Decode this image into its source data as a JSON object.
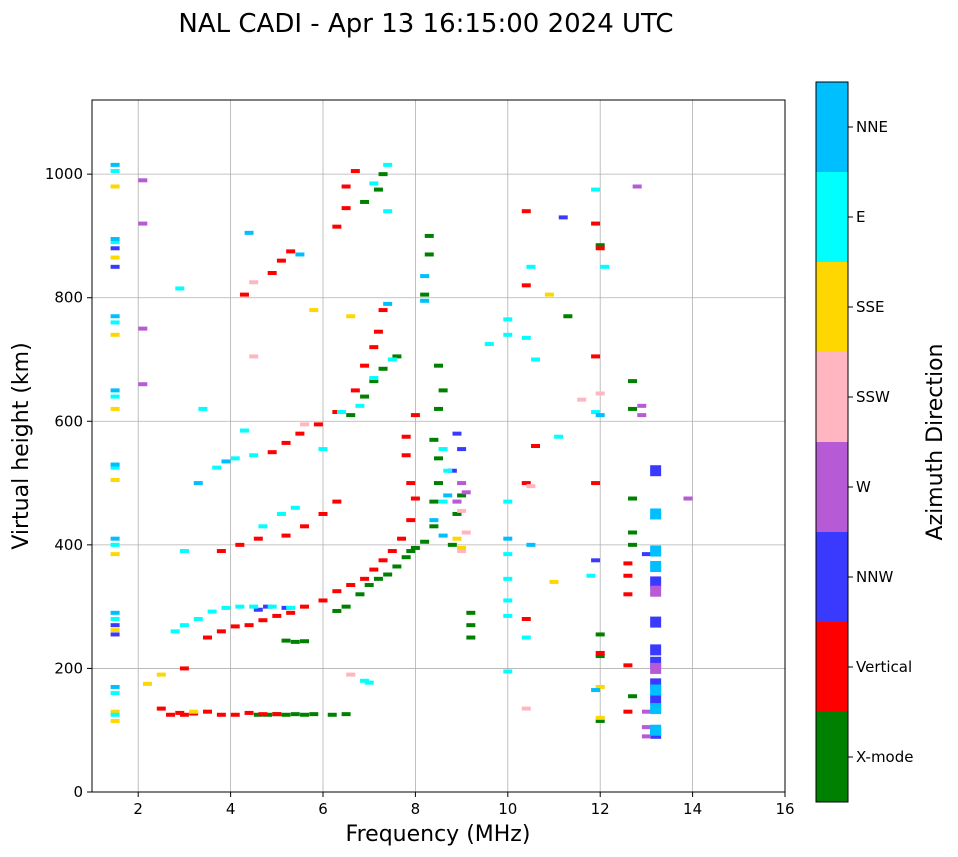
{
  "chart_data": {
    "type": "scatter",
    "title": "NAL CADI - Apr 13 16:15:00 2024 UTC",
    "xlabel": "Frequency (MHz)",
    "ylabel": "Virtual height (km)",
    "xlim": [
      1,
      16
    ],
    "ylim": [
      0,
      1120
    ],
    "x_ticks": [
      2,
      4,
      6,
      8,
      10,
      12,
      14,
      16
    ],
    "y_ticks": [
      0,
      200,
      400,
      600,
      800,
      1000
    ],
    "grid": true,
    "colorbar": {
      "label": "Azimuth Direction",
      "categories": [
        "X-mode",
        "Vertical",
        "NNW",
        "W",
        "SSW",
        "SSE",
        "E",
        "NNE"
      ],
      "colors": [
        "#008000",
        "#ff0000",
        "#3a3aff",
        "#b65ad6",
        "#ffb6c1",
        "#ffd700",
        "#00ffff",
        "#00bfff"
      ]
    },
    "series": [
      {
        "name": "X-mode",
        "points": [
          [
            4.6,
            125
          ],
          [
            4.8,
            125
          ],
          [
            5.0,
            126
          ],
          [
            5.2,
            125
          ],
          [
            5.4,
            126
          ],
          [
            5.6,
            125
          ],
          [
            5.8,
            126
          ],
          [
            6.2,
            125
          ],
          [
            6.5,
            126
          ],
          [
            5.2,
            245
          ],
          [
            5.4,
            243
          ],
          [
            5.6,
            244
          ],
          [
            6.3,
            293
          ],
          [
            6.5,
            300
          ],
          [
            6.8,
            320
          ],
          [
            7.0,
            335
          ],
          [
            7.2,
            345
          ],
          [
            7.4,
            352
          ],
          [
            7.6,
            365
          ],
          [
            7.8,
            380
          ],
          [
            7.9,
            390
          ],
          [
            8.0,
            395
          ],
          [
            8.2,
            405
          ],
          [
            8.4,
            430
          ],
          [
            8.4,
            470
          ],
          [
            8.5,
            500
          ],
          [
            8.5,
            540
          ],
          [
            8.4,
            570
          ],
          [
            8.5,
            620
          ],
          [
            8.6,
            650
          ],
          [
            8.5,
            690
          ],
          [
            9.2,
            290
          ],
          [
            9.2,
            270
          ],
          [
            9.2,
            250
          ],
          [
            6.6,
            610
          ],
          [
            6.9,
            640
          ],
          [
            7.1,
            665
          ],
          [
            7.3,
            685
          ],
          [
            7.6,
            705
          ],
          [
            7.2,
            975
          ],
          [
            6.9,
            955
          ],
          [
            7.3,
            1000
          ],
          [
            8.2,
            805
          ],
          [
            8.3,
            870
          ],
          [
            8.3,
            900
          ],
          [
            11.3,
            770
          ],
          [
            12,
            255
          ],
          [
            12,
            220
          ],
          [
            12,
            115
          ],
          [
            12,
            885
          ],
          [
            12.7,
            665
          ],
          [
            12.7,
            620
          ],
          [
            12.7,
            475
          ],
          [
            12.7,
            420
          ],
          [
            12.7,
            400
          ],
          [
            12.7,
            155
          ],
          [
            8.8,
            400
          ],
          [
            8.9,
            450
          ],
          [
            9.0,
            480
          ]
        ]
      },
      {
        "name": "Vertical",
        "points": [
          [
            2.5,
            135
          ],
          [
            2.7,
            125
          ],
          [
            2.9,
            128
          ],
          [
            3.0,
            125
          ],
          [
            3.2,
            127
          ],
          [
            3.5,
            130
          ],
          [
            3.8,
            125
          ],
          [
            4.1,
            125
          ],
          [
            4.4,
            128
          ],
          [
            4.7,
            126
          ],
          [
            5.0,
            126
          ],
          [
            3.5,
            250
          ],
          [
            3.8,
            260
          ],
          [
            4.1,
            268
          ],
          [
            4.4,
            270
          ],
          [
            4.7,
            278
          ],
          [
            5.0,
            285
          ],
          [
            5.3,
            290
          ],
          [
            5.6,
            300
          ],
          [
            6.0,
            310
          ],
          [
            6.3,
            325
          ],
          [
            6.6,
            335
          ],
          [
            6.9,
            345
          ],
          [
            7.1,
            360
          ],
          [
            7.3,
            375
          ],
          [
            7.5,
            390
          ],
          [
            7.7,
            410
          ],
          [
            7.9,
            440
          ],
          [
            8.0,
            475
          ],
          [
            7.9,
            500
          ],
          [
            7.8,
            545
          ],
          [
            7.8,
            575
          ],
          [
            8.0,
            610
          ],
          [
            4.9,
            550
          ],
          [
            5.2,
            565
          ],
          [
            5.5,
            580
          ],
          [
            5.9,
            595
          ],
          [
            6.3,
            615
          ],
          [
            6.7,
            650
          ],
          [
            6.9,
            690
          ],
          [
            7.1,
            720
          ],
          [
            7.2,
            745
          ],
          [
            7.3,
            780
          ],
          [
            4.9,
            840
          ],
          [
            5.1,
            860
          ],
          [
            5.3,
            875
          ],
          [
            4.3,
            805
          ],
          [
            6.3,
            915
          ],
          [
            6.5,
            945
          ],
          [
            6.5,
            980
          ],
          [
            6.7,
            1005
          ],
          [
            3.0,
            200
          ],
          [
            3.8,
            390
          ],
          [
            4.2,
            400
          ],
          [
            4.6,
            410
          ],
          [
            5.2,
            415
          ],
          [
            5.6,
            430
          ],
          [
            6.0,
            450
          ],
          [
            6.3,
            470
          ],
          [
            10.4,
            940
          ],
          [
            10.4,
            820
          ],
          [
            10.4,
            500
          ],
          [
            10.4,
            280
          ],
          [
            10.6,
            560
          ],
          [
            11.9,
            920
          ],
          [
            11.9,
            705
          ],
          [
            11.9,
            500
          ],
          [
            12.6,
            370
          ],
          [
            12.6,
            350
          ],
          [
            12.6,
            320
          ],
          [
            12.6,
            205
          ],
          [
            12.6,
            130
          ],
          [
            12.0,
            225
          ],
          [
            12.0,
            880
          ]
        ]
      },
      {
        "name": "NNW",
        "points": [
          [
            13.2,
            520
          ],
          [
            13.2,
            340
          ],
          [
            13.2,
            275
          ],
          [
            13.2,
            230
          ],
          [
            13.2,
            210
          ],
          [
            13.2,
            175
          ],
          [
            13.2,
            150
          ],
          [
            13.2,
            95
          ],
          [
            13.0,
            385
          ],
          [
            11.2,
            930
          ],
          [
            8.9,
            580
          ],
          [
            9.0,
            555
          ],
          [
            8.8,
            520
          ],
          [
            4.6,
            295
          ],
          [
            4.8,
            300
          ],
          [
            5.2,
            298
          ],
          [
            1.5,
            255
          ],
          [
            1.5,
            270
          ],
          [
            1.5,
            850
          ],
          [
            1.5,
            880
          ],
          [
            11.9,
            375
          ]
        ]
      },
      {
        "name": "W",
        "points": [
          [
            13.2,
            325
          ],
          [
            13.2,
            200
          ],
          [
            13.0,
            130
          ],
          [
            13.0,
            105
          ],
          [
            13.0,
            90
          ],
          [
            12.9,
            610
          ],
          [
            12.9,
            625
          ],
          [
            12.8,
            980
          ],
          [
            13.9,
            475
          ],
          [
            8.9,
            470
          ],
          [
            9.1,
            485
          ],
          [
            9.0,
            500
          ],
          [
            2.1,
            990
          ],
          [
            2.1,
            920
          ],
          [
            2.1,
            750
          ],
          [
            2.1,
            660
          ]
        ]
      },
      {
        "name": "SSW",
        "points": [
          [
            9.0,
            390
          ],
          [
            9.1,
            420
          ],
          [
            9.0,
            455
          ],
          [
            4.5,
            825
          ],
          [
            6.6,
            190
          ],
          [
            10.4,
            135
          ],
          [
            10.5,
            495
          ],
          [
            11.6,
            635
          ],
          [
            12.0,
            645
          ],
          [
            5.6,
            595
          ],
          [
            4.5,
            705
          ]
        ]
      },
      {
        "name": "SSE",
        "points": [
          [
            1.5,
            980
          ],
          [
            1.5,
            865
          ],
          [
            1.5,
            740
          ],
          [
            1.5,
            620
          ],
          [
            1.5,
            505
          ],
          [
            1.5,
            385
          ],
          [
            1.5,
            262
          ],
          [
            1.5,
            130
          ],
          [
            1.5,
            115
          ],
          [
            8.9,
            410
          ],
          [
            9.0,
            395
          ],
          [
            6.6,
            770
          ],
          [
            10.9,
            805
          ],
          [
            11.0,
            340
          ],
          [
            12.0,
            120
          ],
          [
            12.0,
            170
          ],
          [
            2.2,
            175
          ],
          [
            2.5,
            190
          ],
          [
            3.2,
            130
          ],
          [
            5.8,
            780
          ]
        ]
      },
      {
        "name": "E",
        "points": [
          [
            1.5,
            1005
          ],
          [
            1.5,
            890
          ],
          [
            1.5,
            760
          ],
          [
            1.5,
            640
          ],
          [
            1.5,
            525
          ],
          [
            1.5,
            400
          ],
          [
            1.5,
            280
          ],
          [
            1.5,
            160
          ],
          [
            1.5,
            125
          ],
          [
            2.8,
            260
          ],
          [
            3.0,
            270
          ],
          [
            3.3,
            280
          ],
          [
            3.6,
            292
          ],
          [
            3.9,
            298
          ],
          [
            4.2,
            300
          ],
          [
            4.5,
            300
          ],
          [
            4.9,
            300
          ],
          [
            5.3,
            298
          ],
          [
            3.7,
            525
          ],
          [
            4.1,
            540
          ],
          [
            4.5,
            545
          ],
          [
            4.7,
            430
          ],
          [
            5.1,
            450
          ],
          [
            5.4,
            460
          ],
          [
            6.0,
            555
          ],
          [
            6.4,
            615
          ],
          [
            6.8,
            625
          ],
          [
            7.1,
            670
          ],
          [
            7.5,
            700
          ],
          [
            7.4,
            940
          ],
          [
            7.1,
            985
          ],
          [
            7.4,
            1015
          ],
          [
            10.0,
            765
          ],
          [
            10.0,
            740
          ],
          [
            10.0,
            470
          ],
          [
            10.0,
            385
          ],
          [
            10.0,
            345
          ],
          [
            10.0,
            310
          ],
          [
            10.0,
            285
          ],
          [
            10.4,
            735
          ],
          [
            10.4,
            250
          ],
          [
            10.5,
            850
          ],
          [
            10.6,
            700
          ],
          [
            11.1,
            575
          ],
          [
            11.9,
            975
          ],
          [
            12.1,
            850
          ],
          [
            8.6,
            555
          ],
          [
            8.7,
            520
          ],
          [
            8.6,
            470
          ],
          [
            7.0,
            177
          ],
          [
            6.9,
            180
          ],
          [
            3.0,
            390
          ],
          [
            4.3,
            585
          ],
          [
            2.9,
            815
          ],
          [
            3.4,
            620
          ],
          [
            9.6,
            725
          ],
          [
            11.9,
            615
          ],
          [
            10.0,
            195
          ],
          [
            11.8,
            350
          ]
        ]
      },
      {
        "name": "NNE",
        "points": [
          [
            1.5,
            1015
          ],
          [
            1.5,
            895
          ],
          [
            1.5,
            770
          ],
          [
            1.5,
            650
          ],
          [
            1.5,
            530
          ],
          [
            1.5,
            410
          ],
          [
            1.5,
            290
          ],
          [
            1.5,
            170
          ],
          [
            13.2,
            450
          ],
          [
            13.2,
            390
          ],
          [
            13.2,
            365
          ],
          [
            13.2,
            165
          ],
          [
            13.2,
            135
          ],
          [
            13.2,
            100
          ],
          [
            8.4,
            440
          ],
          [
            8.6,
            415
          ],
          [
            8.7,
            480
          ],
          [
            3.9,
            535
          ],
          [
            4.4,
            905
          ],
          [
            5.5,
            870
          ],
          [
            7.4,
            790
          ],
          [
            8.2,
            835
          ],
          [
            8.2,
            795
          ],
          [
            11.9,
            165
          ],
          [
            12.0,
            610
          ],
          [
            10.0,
            410
          ],
          [
            10.5,
            400
          ],
          [
            3.3,
            500
          ]
        ]
      }
    ]
  }
}
